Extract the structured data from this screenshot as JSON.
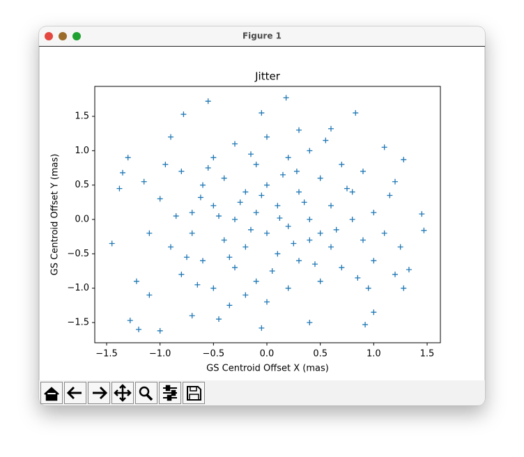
{
  "window": {
    "title": "Figure 1"
  },
  "chart_data": {
    "type": "scatter",
    "title": "Jitter",
    "xlabel": "GS Centroid Offset X (mas)",
    "ylabel": "GS Centroid Offset Y (mas)",
    "marker": "+",
    "color": "#1f77b4",
    "xlim": [
      -1.611,
      1.624
    ],
    "ylim": [
      -1.794,
      1.936
    ],
    "xticks": [
      {
        "value": -1.5,
        "label": "−1.5"
      },
      {
        "value": -1.0,
        "label": "−1.0"
      },
      {
        "value": -0.5,
        "label": "−0.5"
      },
      {
        "value": 0,
        "label": "0.0"
      },
      0.5,
      {
        "value": 1,
        "label": "1.0"
      },
      1.5
    ],
    "yticks": [
      {
        "value": -1.5,
        "label": "−1.5"
      },
      {
        "value": -1.0,
        "label": "−1.0"
      },
      {
        "value": -0.5,
        "label": "−0.5"
      },
      {
        "value": 0,
        "label": "0.0"
      },
      0.5,
      {
        "value": 1,
        "label": "1.0"
      },
      1.5
    ],
    "x": [
      -1.45,
      1.47,
      1.45,
      0.18,
      -0.55,
      0.83,
      -1.2,
      -1.0,
      0.92,
      -1.28,
      -1.38,
      -1.3,
      1.28,
      1.33,
      -0.78,
      -0.05,
      -1.35,
      1.28,
      -0.9,
      0.6,
      -0.45,
      0.4,
      -0.05,
      1.2,
      -1.22,
      1.0,
      -0.7,
      1.1,
      -1.1,
      1.25,
      -1.0,
      -0.9,
      -0.8,
      -0.8,
      -0.7,
      -0.7,
      -0.6,
      -0.6,
      -0.5,
      -0.5,
      -0.5,
      -0.4,
      -0.4,
      -0.3,
      -0.3,
      -0.3,
      -0.2,
      -0.2,
      -0.1,
      -0.1,
      -0.1,
      0.0,
      0.0,
      0.0,
      0.0,
      0.1,
      0.1,
      0.2,
      0.2,
      0.2,
      0.3,
      0.3,
      0.4,
      0.4,
      0.4,
      0.5,
      0.5,
      0.6,
      0.6,
      0.7,
      0.7,
      0.8,
      0.8,
      0.9,
      0.9,
      1.0,
      1.0,
      -0.95,
      -1.1,
      1.1,
      -0.25,
      0.15,
      -0.65,
      0.55,
      -0.15,
      0.35,
      -0.45,
      0.05,
      0.65,
      -0.85,
      0.25,
      -0.35,
      0.75,
      -0.55,
      0.45,
      0.85,
      -0.75,
      -0.15,
      0.12,
      -0.05,
      0.28,
      -0.62,
      0.5,
      1.15,
      -1.15,
      0.95,
      -0.35,
      0.3,
      -0.2,
      1.2
    ],
    "y": [
      -0.35,
      -0.16,
      0.08,
      1.77,
      1.72,
      1.55,
      -1.6,
      -1.62,
      -1.53,
      -1.47,
      0.45,
      0.9,
      0.87,
      -0.73,
      1.53,
      1.55,
      0.68,
      -1.0,
      1.2,
      1.32,
      -1.45,
      -1.5,
      -1.58,
      0.55,
      -0.9,
      -1.35,
      -1.4,
      1.05,
      -1.1,
      -0.4,
      0.3,
      -0.4,
      0.7,
      -0.8,
      0.1,
      -0.2,
      0.5,
      -0.6,
      0.9,
      -1.0,
      0.2,
      -0.3,
      0.6,
      1.1,
      -0.7,
      0.0,
      0.4,
      -0.4,
      0.8,
      -0.9,
      0.1,
      -0.2,
      0.5,
      1.2,
      -1.2,
      0.2,
      -0.5,
      0.9,
      -0.1,
      -1.0,
      0.4,
      -0.6,
      1.0,
      0.0,
      -0.3,
      0.6,
      -0.9,
      0.2,
      -0.4,
      0.8,
      -0.7,
      0.0,
      0.4,
      -0.3,
      0.7,
      0.1,
      -0.6,
      0.8,
      -0.2,
      -0.2,
      0.25,
      0.65,
      -0.95,
      1.15,
      -0.15,
      0.25,
      0.05,
      -0.75,
      -0.15,
      0.05,
      -0.35,
      -0.55,
      0.45,
      0.75,
      -0.65,
      -0.85,
      -0.55,
      0.95,
      0.02,
      0.35,
      0.7,
      0.32,
      -0.2,
      0.35,
      0.55,
      -1.0,
      -1.25,
      1.3,
      -1.1,
      -0.8
    ]
  }
}
